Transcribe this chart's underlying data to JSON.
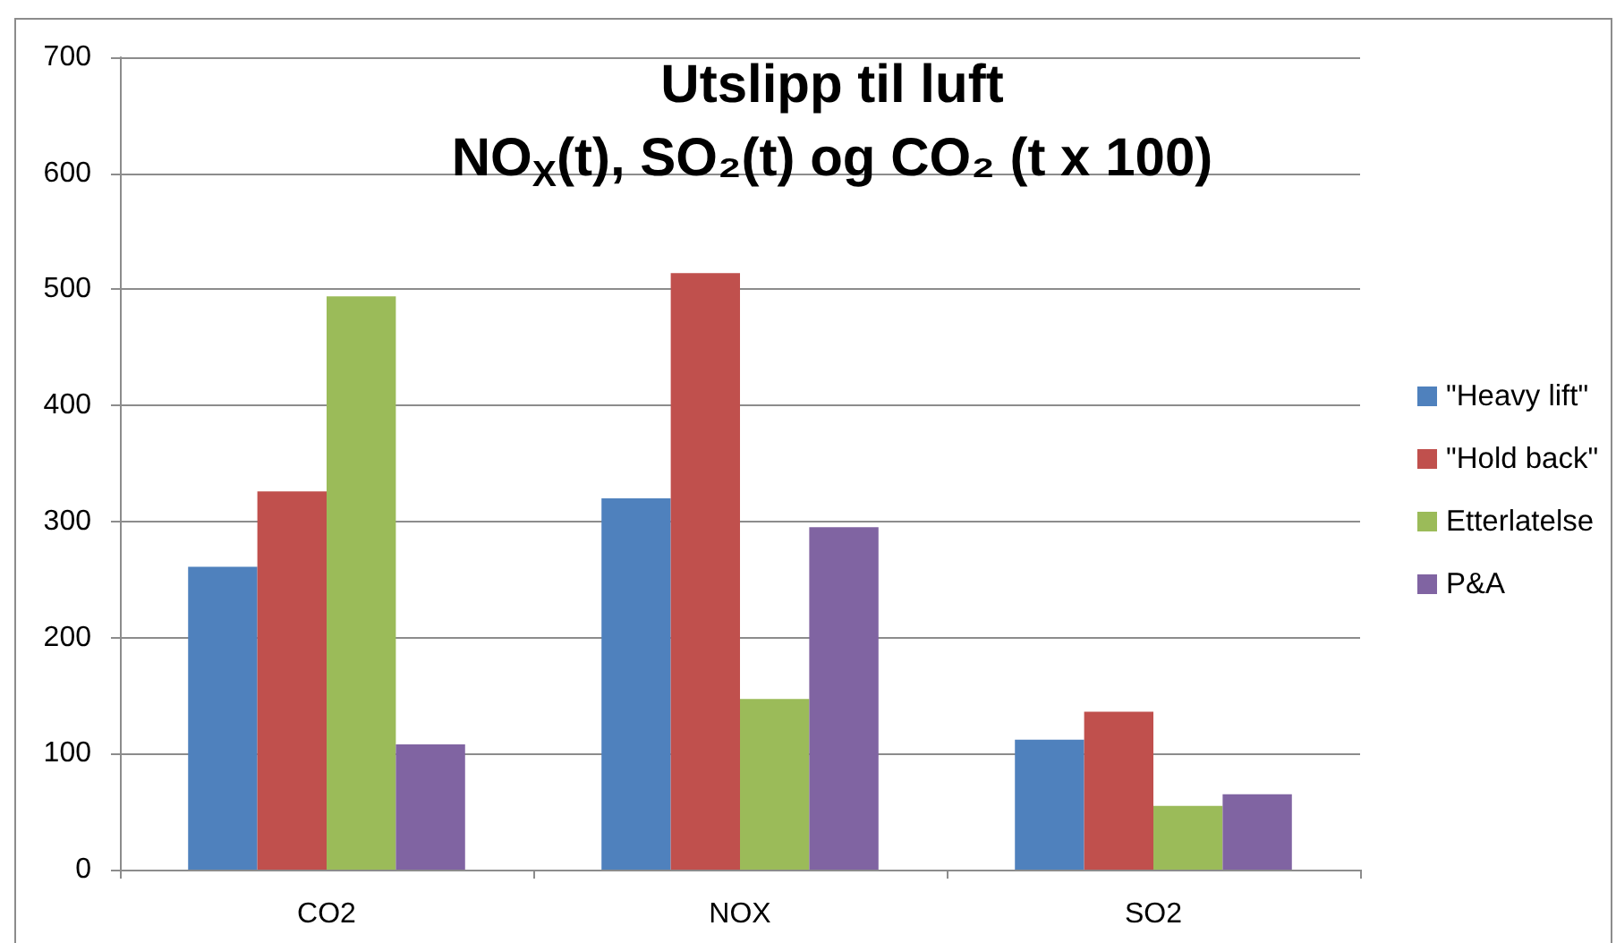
{
  "chart_data": {
    "type": "bar",
    "title": "Utslipp til luft\nNO$_{X}$(t), SO₂(t) og CO₂ (t x 100)",
    "categories": [
      "CO2",
      "NOX",
      "SO2"
    ],
    "series": [
      {
        "name": "\"Heavy lift\"",
        "color": "#4f81bd",
        "values": [
          261,
          320,
          112
        ]
      },
      {
        "name": "\"Hold back\"",
        "color": "#c0504d",
        "values": [
          326,
          514,
          136
        ]
      },
      {
        "name": "Etterlatelse",
        "color": "#9bbb59",
        "values": [
          494,
          147,
          55
        ]
      },
      {
        "name": "P&A",
        "color": "#8064a2",
        "values": [
          108,
          295,
          65
        ]
      }
    ],
    "ylim": [
      0,
      700
    ],
    "yticks": [
      0,
      100,
      200,
      300,
      400,
      500,
      600,
      700
    ],
    "grid": "y",
    "legend": "right"
  }
}
